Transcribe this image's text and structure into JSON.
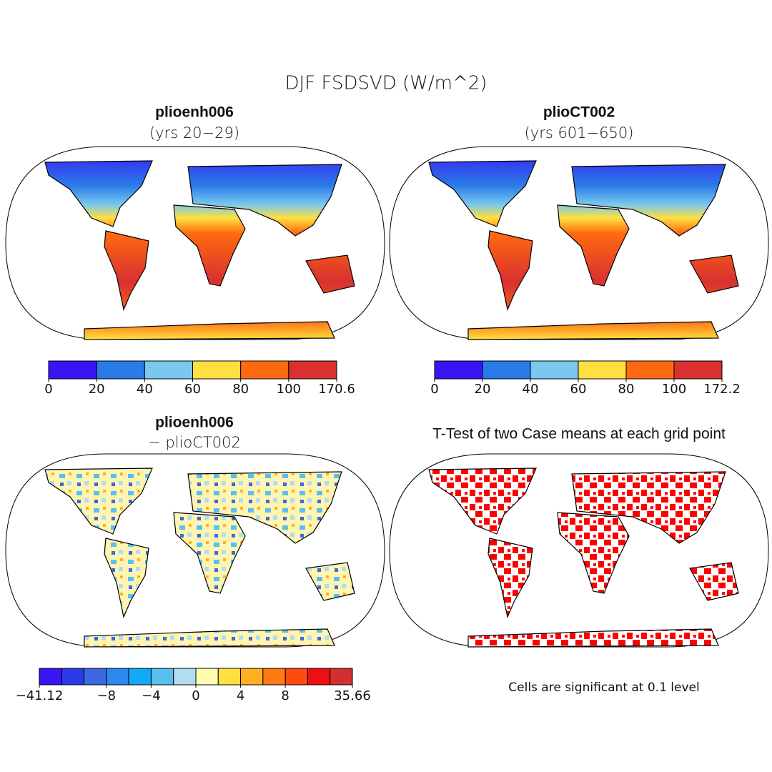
{
  "title": "DJF FSDSVD (W/m^2)",
  "panels": [
    {
      "title": "plioenh006",
      "subtitle": "(yrs 20−29)",
      "colorbar": {
        "colors": [
          "#3a14f5",
          "#2a7ae8",
          "#78c8f0",
          "#ffe040",
          "#ff6a10",
          "#d93030"
        ],
        "ticks": [
          0,
          20,
          40,
          60,
          80,
          100,
          170.6
        ]
      }
    },
    {
      "title": "plioCT002",
      "subtitle": "(yrs 601−650)",
      "colorbar": {
        "colors": [
          "#3a14f5",
          "#2a7ae8",
          "#78c8f0",
          "#ffe040",
          "#ff6a10",
          "#d93030"
        ],
        "ticks": [
          0,
          20,
          40,
          60,
          80,
          100,
          172.2
        ]
      }
    },
    {
      "title": "plioenh006",
      "subtitle": "− plioCT002",
      "colorbar": {
        "colors": [
          "#3a14f5",
          "#2a3ae8",
          "#3a6ae0",
          "#2a8af0",
          "#10aaf8",
          "#58c0f0",
          "#b0ddf0",
          "#fffcb0",
          "#ffe040",
          "#ffb020",
          "#ff7a10",
          "#ff4a10",
          "#ee1010",
          "#d03030"
        ],
        "ticks": [
          {
            "value": -41.12,
            "label": "−41.12"
          },
          {
            "value": -8,
            "label": "−8"
          },
          {
            "value": -4,
            "label": "−4"
          },
          0,
          4,
          8,
          35.66
        ]
      }
    },
    {
      "title": "T-Test of two Case means at each grid point",
      "note": "Cells are significant at 0.1 level"
    }
  ]
}
